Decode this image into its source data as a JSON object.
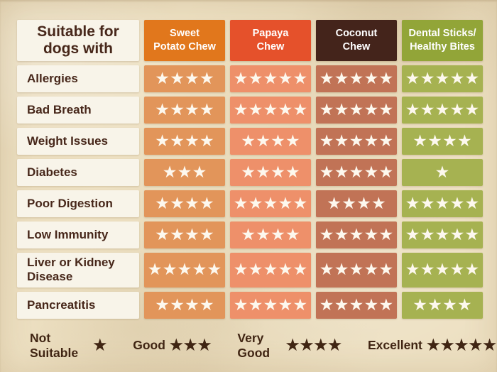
{
  "table": {
    "corner_title": "Suitable for\ndogs with",
    "products": [
      {
        "name": "Sweet\nPotato Chew",
        "header_bg": "#E1771C",
        "cell_bg": "#E2955A",
        "header_text_color": "#FFFFFF"
      },
      {
        "name": "Papaya\nChew",
        "header_bg": "#E5512B",
        "cell_bg": "#EE906A",
        "header_text_color": "#FFFFFF"
      },
      {
        "name": "Coconut\nChew",
        "header_bg": "#44241B",
        "cell_bg": "#C17356",
        "header_text_color": "#FFFFFF"
      },
      {
        "name": "Dental Sticks/\nHealthy Bites",
        "header_bg": "#92A538",
        "cell_bg": "#A6B251",
        "header_text_color": "#FFFFFF"
      }
    ],
    "rows": [
      {
        "condition": "Allergies",
        "ratings": [
          4,
          5,
          5,
          5
        ]
      },
      {
        "condition": "Bad Breath",
        "ratings": [
          4,
          5,
          5,
          5
        ]
      },
      {
        "condition": "Weight Issues",
        "ratings": [
          4,
          4,
          5,
          4
        ]
      },
      {
        "condition": "Diabetes",
        "ratings": [
          3,
          4,
          5,
          1
        ]
      },
      {
        "condition": "Poor Digestion",
        "ratings": [
          4,
          5,
          4,
          5
        ]
      },
      {
        "condition": "Low Immunity",
        "ratings": [
          4,
          4,
          5,
          5
        ]
      },
      {
        "condition": "Liver or Kidney Disease",
        "ratings": [
          5,
          5,
          5,
          5
        ]
      },
      {
        "condition": "Pancreatitis",
        "ratings": [
          4,
          5,
          5,
          4
        ]
      }
    ]
  },
  "legend": [
    {
      "label": "Not Suitable",
      "stars": 1
    },
    {
      "label": "Good",
      "stars": 3
    },
    {
      "label": "Very Good",
      "stars": 4
    },
    {
      "label": "Excellent",
      "stars": 5
    }
  ],
  "colors": {
    "paper_background": "#EDE0C2",
    "label_box": "#F8F4E9",
    "label_text": "#47271A",
    "cell_star": "#FDF8EE",
    "legend_text": "#402513"
  },
  "icons": {
    "star": "★"
  },
  "chart_data": {
    "type": "table",
    "title": "Suitable for dogs with",
    "columns": [
      "Sweet Potato Chew",
      "Papaya Chew",
      "Coconut Chew",
      "Dental Sticks/Healthy Bites"
    ],
    "row_labels": [
      "Allergies",
      "Bad Breath",
      "Weight Issues",
      "Diabetes",
      "Poor Digestion",
      "Low Immunity",
      "Liver or Kidney Disease",
      "Pancreatitis"
    ],
    "ratings": [
      [
        4,
        5,
        5,
        5
      ],
      [
        4,
        5,
        5,
        5
      ],
      [
        4,
        4,
        5,
        4
      ],
      [
        3,
        4,
        5,
        1
      ],
      [
        4,
        5,
        4,
        5
      ],
      [
        4,
        4,
        5,
        5
      ],
      [
        5,
        5,
        5,
        5
      ],
      [
        4,
        5,
        5,
        4
      ]
    ],
    "rating_scale": {
      "1": "Not Suitable",
      "3": "Good",
      "4": "Very Good",
      "5": "Excellent"
    },
    "legend_position": "bottom"
  }
}
